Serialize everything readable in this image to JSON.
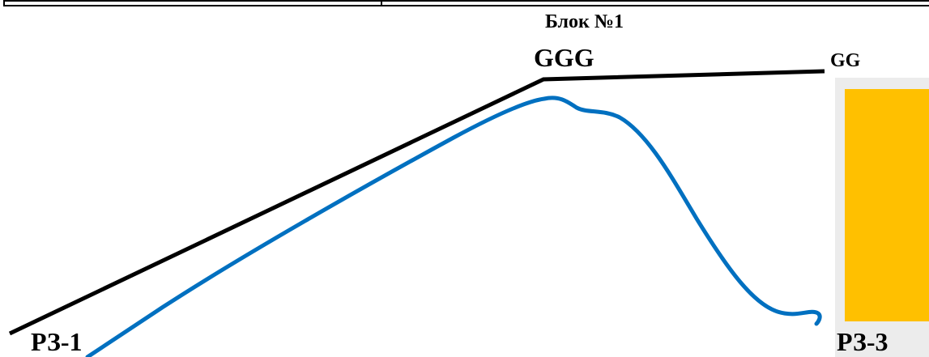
{
  "diagram": {
    "block_title": "Блок №1",
    "node_top": "GGG",
    "node_right": "GG",
    "node_left_bottom": "РЗ-1",
    "node_right_bottom": "РЗ-3"
  },
  "colors": {
    "black_line": "#000000",
    "blue_curve": "#0070c0",
    "orange_block": "#ffc000",
    "panel_bg": "#ececec"
  }
}
